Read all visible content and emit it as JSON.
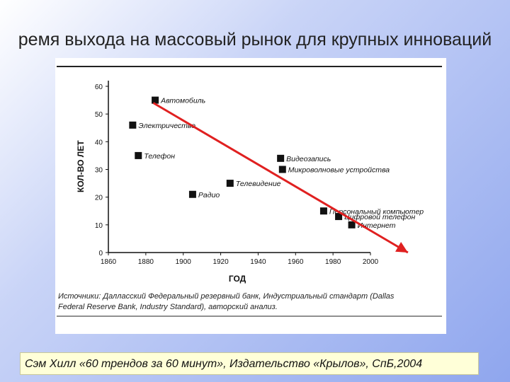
{
  "slide": {
    "title": "ремя выхода на массовый рынок для крупных инноваций",
    "citation": "Сэм Хилл «60 трендов за 60 минут», Издательство «Крылов», СпБ,2004"
  },
  "chart_data": {
    "type": "scatter",
    "title": "",
    "xlabel": "ГОД",
    "ylabel": "КОЛ-ВО ЛЕТ",
    "xlim": [
      1860,
      2000
    ],
    "ylim": [
      0,
      60
    ],
    "x_ticks": [
      "1860",
      "1880",
      "1900",
      "1920",
      "1940",
      "1960",
      "1980",
      "2000"
    ],
    "y_ticks": [
      "0",
      "10",
      "20",
      "30",
      "40",
      "50",
      "60"
    ],
    "grid": false,
    "points": [
      {
        "label": "Автомобиль",
        "x": 1885,
        "y": 55
      },
      {
        "label": "Электричество",
        "x": 1873,
        "y": 46
      },
      {
        "label": "Телефон",
        "x": 1876,
        "y": 35
      },
      {
        "label": "Радио",
        "x": 1905,
        "y": 21
      },
      {
        "label": "Телевидение",
        "x": 1925,
        "y": 25
      },
      {
        "label": "Видеозапись",
        "x": 1952,
        "y": 34
      },
      {
        "label": "Микроволновые устройства",
        "x": 1953,
        "y": 30
      },
      {
        "label": "Персональный компьютер",
        "x": 1975,
        "y": 15
      },
      {
        "label": "Цифровой телефон",
        "x": 1983,
        "y": 13
      },
      {
        "label": "Интернет",
        "x": 1990,
        "y": 10
      }
    ],
    "trend_arrow": {
      "color": "#e02020",
      "from": {
        "x": 1884,
        "y": 54
      },
      "to": {
        "x": 2020,
        "y": 0
      }
    },
    "source_lines": [
      "Источники: Далласский Федеральный резервный банк, Индустриальный стандарт (Dallas",
      "Federal Reserve Bank, Industry Standard), авторский анализ."
    ]
  }
}
